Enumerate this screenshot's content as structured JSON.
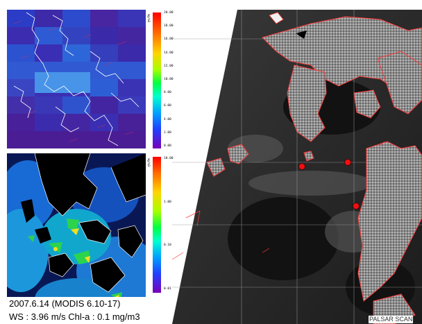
{
  "colorbar_top": {
    "unit": "mg/m3",
    "ticks": [
      "20.00",
      "18.00",
      "16.00",
      "14.00",
      "12.00",
      "10.00",
      "8.00",
      "6.00",
      "4.00",
      "2.00",
      "0.00"
    ]
  },
  "colorbar_bottom": {
    "unit": "mg/m3",
    "ticks": [
      "10.00",
      "1.00",
      "0.10",
      "0.01"
    ]
  },
  "caption": {
    "line1": "2007.6.14 (MODIS 6.10-17)",
    "line2": "WS : 3.96 m/s  Chl-a : 0.1 mg/m3"
  },
  "sar": {
    "label": "PALSAR SCAN",
    "markers": [
      "station-1",
      "station-2",
      "station-3"
    ]
  },
  "colors": {
    "marker": "#ee1111",
    "coastline_sar": "#ff3b3b",
    "coastline_map": "#ffffff"
  }
}
